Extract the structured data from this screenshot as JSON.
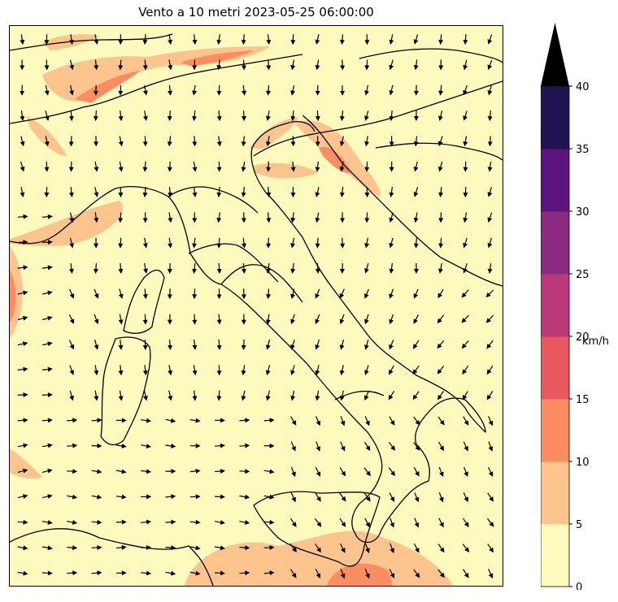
{
  "title": "Vento a 10 metri 2023-05-25 06:00:00",
  "colorbar": {
    "unit": "km/h",
    "extend": "max",
    "levels": [
      "0",
      "5",
      "10",
      "15",
      "20",
      "25",
      "30",
      "35",
      "40"
    ],
    "colors": [
      "#fcfbbd",
      "#fdc48d",
      "#fc8c61",
      "#e8585e",
      "#bb3978",
      "#8a2a81",
      "#5c157d",
      "#221452",
      "#000000"
    ]
  },
  "map": {
    "region": "Italia",
    "date_time": "2023-05-25 06:00:00",
    "field": "wind speed at 10 m",
    "vectors": "wind direction arrows",
    "base_color": "#fcfbbd",
    "coast_color": "#000000"
  }
}
